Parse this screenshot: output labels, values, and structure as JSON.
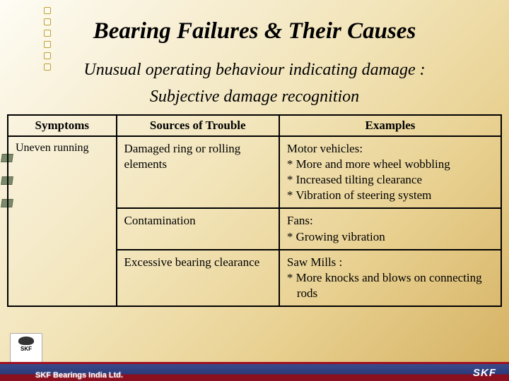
{
  "title": "Bearing Failures & Their Causes",
  "subtitle1": "Unusual operating behaviour indicating damage :",
  "subtitle2": "Subjective damage recognition",
  "table": {
    "headers": {
      "c1": "Symptoms",
      "c2": "Sources of Trouble",
      "c3": "Examples"
    },
    "rows": [
      {
        "symptom": "Uneven running",
        "source": "Damaged ring or rolling elements",
        "example_title": "Motor vehicles:",
        "example_items": [
          "*  More and more wheel wobbling",
          "*  Increased tilting clearance",
          "*  Vibration of steering system"
        ]
      },
      {
        "symptom": "",
        "source": "Contamination",
        "example_title": "Fans:",
        "example_items": [
          "*  Growing vibration"
        ]
      },
      {
        "symptom": "",
        "source": "Excessive bearing clearance",
        "example_title": "Saw Mills :",
        "example_items": [
          "*  More knocks and blows on connecting rods"
        ]
      }
    ]
  },
  "footer_text": "SKF Bearings India Ltd.",
  "logo_text": "SKF",
  "brand": "SKF",
  "colors": {
    "border": "#000000",
    "footer_blue": "#2a3a7a",
    "footer_red": "#8a1020"
  }
}
